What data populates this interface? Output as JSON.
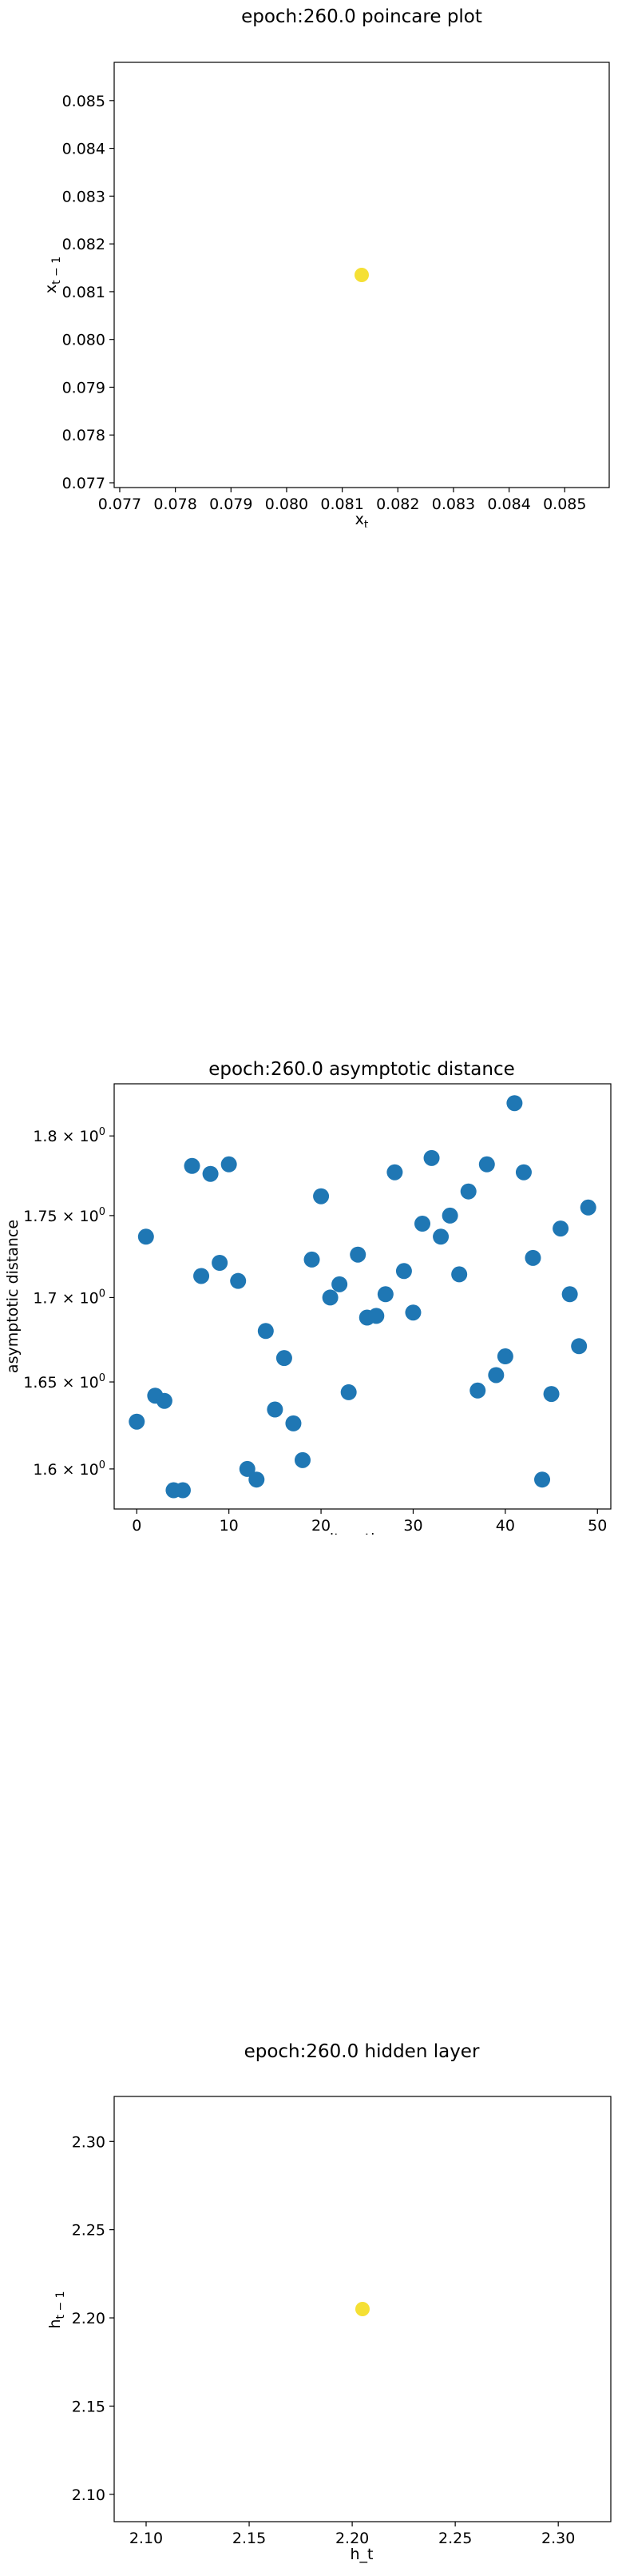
{
  "chart_data": [
    {
      "type": "scatter",
      "title": "epoch:260.0 poincare plot",
      "xlabel_main": "x",
      "xlabel_sub": "t",
      "ylabel_main": "x",
      "ylabel_sub": "t − 1",
      "xlim": [
        0.0769,
        0.0858
      ],
      "ylim": [
        0.0769,
        0.0858
      ],
      "xticks": [
        "0.077",
        "0.078",
        "0.079",
        "0.080",
        "0.081",
        "0.082",
        "0.083",
        "0.084",
        "0.085"
      ],
      "xtick_values": [
        0.077,
        0.078,
        0.079,
        0.08,
        0.081,
        0.082,
        0.083,
        0.084,
        0.085
      ],
      "yticks": [
        "0.077",
        "0.078",
        "0.079",
        "0.080",
        "0.081",
        "0.082",
        "0.083",
        "0.084",
        "0.085"
      ],
      "ytick_values": [
        0.077,
        0.078,
        0.079,
        0.08,
        0.081,
        0.082,
        0.083,
        0.084,
        0.085
      ],
      "color": "#f5e035",
      "points": [
        {
          "x": 0.08135,
          "y": 0.08135
        }
      ]
    },
    {
      "type": "scatter",
      "title": "epoch:260.0 asymptotic distance",
      "xlabel": "iteration",
      "ylabel": "asymptotic distance",
      "yscale": "log",
      "xlim": [
        -2.45,
        51.45
      ],
      "ylim": [
        1.5775,
        1.8335
      ],
      "xticks": [
        "0",
        "10",
        "20",
        "30",
        "40",
        "50"
      ],
      "xtick_values": [
        0,
        10,
        20,
        30,
        40,
        50
      ],
      "yticks": [
        {
          "mantissa": "1.6",
          "value": 1.6
        },
        {
          "mantissa": "1.65",
          "value": 1.65
        },
        {
          "mantissa": "1.7",
          "value": 1.7
        },
        {
          "mantissa": "1.75",
          "value": 1.75
        },
        {
          "mantissa": "1.8",
          "value": 1.8
        }
      ],
      "ytick_base": "10",
      "ytick_exp": "0",
      "color": "#1f77b4",
      "x": [
        0,
        1,
        2,
        3,
        4,
        5,
        6,
        7,
        8,
        9,
        10,
        11,
        12,
        13,
        14,
        15,
        16,
        17,
        18,
        19,
        20,
        21,
        22,
        23,
        24,
        25,
        26,
        27,
        28,
        29,
        30,
        31,
        32,
        33,
        34,
        35,
        36,
        37,
        38,
        39,
        40,
        41,
        42,
        43,
        44,
        45,
        46,
        47,
        48,
        49
      ],
      "y": [
        1.627,
        1.737,
        1.642,
        1.639,
        1.588,
        1.588,
        1.781,
        1.713,
        1.776,
        1.721,
        1.782,
        1.71,
        1.6,
        1.594,
        1.68,
        1.634,
        1.664,
        1.626,
        1.605,
        1.723,
        1.762,
        1.7,
        1.708,
        1.644,
        1.726,
        1.688,
        1.689,
        1.702,
        1.777,
        1.716,
        1.691,
        1.745,
        1.786,
        1.737,
        1.75,
        1.714,
        1.765,
        1.645,
        1.782,
        1.654,
        1.665,
        1.821,
        1.777,
        1.724,
        1.594,
        1.643,
        1.742,
        1.702,
        1.671,
        1.755
      ]
    },
    {
      "type": "scatter",
      "title": "epoch:260.0 hidden layer",
      "xlabel": "h_t",
      "ylabel_main": "h",
      "ylabel_sub": "t − 1",
      "xlim": [
        2.0845,
        2.3255
      ],
      "ylim": [
        2.0845,
        2.3255
      ],
      "xticks": [
        "2.10",
        "2.15",
        "2.20",
        "2.25",
        "2.30"
      ],
      "xtick_values": [
        2.1,
        2.15,
        2.2,
        2.25,
        2.3
      ],
      "yticks": [
        "2.10",
        "2.15",
        "2.20",
        "2.25",
        "2.30"
      ],
      "ytick_values": [
        2.1,
        2.15,
        2.2,
        2.25,
        2.3
      ],
      "color": "#f5e035",
      "points": [
        {
          "x": 2.205,
          "y": 2.205
        }
      ]
    }
  ]
}
